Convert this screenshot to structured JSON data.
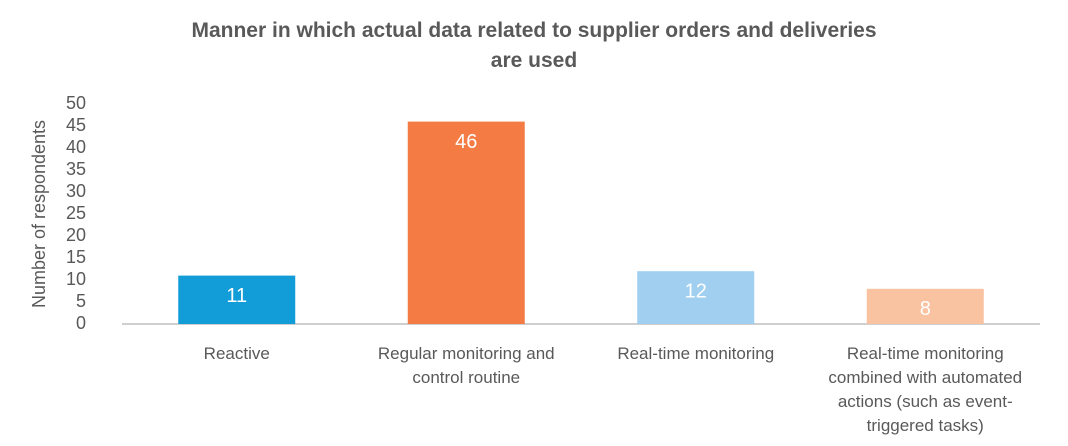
{
  "chart_data": {
    "type": "bar",
    "title": "Manner in which actual data related to supplier orders and deliveries are used",
    "y_label": "Number of respondents",
    "categories": [
      "Reactive",
      "Regular monitoring and control routine",
      "Real-time monitoring",
      "Real-time monitoring combined with automated actions (such as event-triggered tasks)"
    ],
    "values": [
      11,
      46,
      12,
      8
    ],
    "colors": [
      "#139dd8",
      "#f47b44",
      "#a0cff0",
      "#f9c2a0"
    ],
    "ylim": [
      0,
      50
    ],
    "yticks": [
      0,
      5,
      10,
      15,
      20,
      25,
      30,
      35,
      40,
      45,
      50
    ],
    "grid": false
  }
}
